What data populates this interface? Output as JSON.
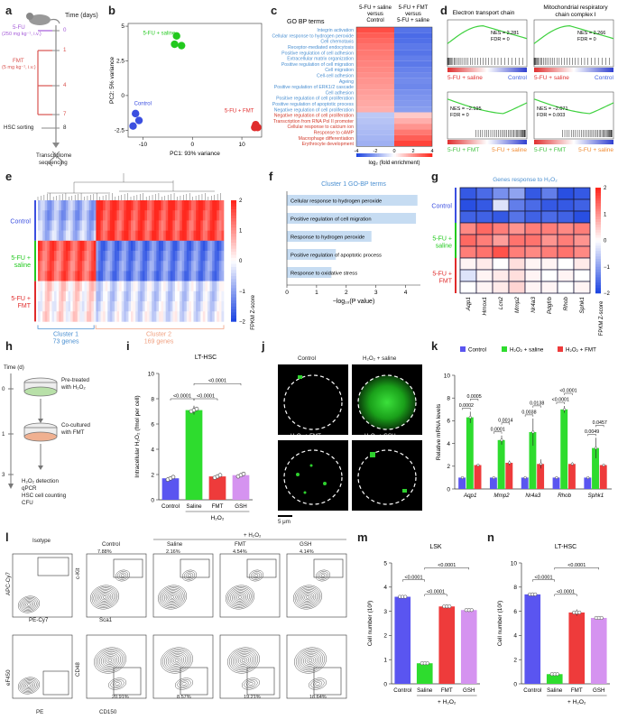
{
  "panel_labels": {
    "a": "a",
    "b": "b",
    "c": "c",
    "d": "d",
    "e": "e",
    "f": "f",
    "g": "g",
    "h": "h",
    "i": "i",
    "j": "j",
    "k": "k",
    "l": "l",
    "m": "m",
    "n": "n"
  },
  "panel_a": {
    "time_label": "Time (days)",
    "days": [
      "0",
      "1",
      "4",
      "7",
      "8"
    ],
    "fu_label": "5-FU",
    "fu_dose": "(250 mg kg⁻¹, i.v.)",
    "fmt_label": "FMT",
    "fmt_dose": "(5 mg kg⁻¹, i.v.)",
    "hsc_sorting": "HSC sorting",
    "transcriptome": "Transcriptome",
    "sequencing": "sequencing"
  },
  "chart_data": [
    {
      "id": "b",
      "type": "scatter",
      "xlabel": "PC1: 93% variance",
      "ylabel": "PC2: 5% variance",
      "xlim": [
        -13,
        14
      ],
      "ylim": [
        -3,
        5.2
      ],
      "xticks": [
        -10,
        0,
        10
      ],
      "yticks": [
        -2.5,
        0,
        2.5,
        5
      ],
      "series": [
        {
          "name": "5-FU + saline",
          "color": "#22c91e",
          "points": [
            [
              -3.2,
              4.3
            ],
            [
              -2.2,
              3.6
            ],
            [
              -3.6,
              3.7
            ]
          ]
        },
        {
          "name": "Control",
          "color": "#3b4fe0",
          "points": [
            [
              -11.5,
              -1.3
            ],
            [
              -10.8,
              -1.8
            ],
            [
              -12.0,
              -2.2
            ]
          ]
        },
        {
          "name": "5-FU + FMT",
          "color": "#e02b2b",
          "points": [
            [
              12.8,
              -2.1
            ],
            [
              13.2,
              -2.3
            ],
            [
              12.6,
              -2.3
            ]
          ]
        }
      ]
    },
    {
      "id": "c",
      "type": "heatmap",
      "title": "GO BP terms",
      "col_labels": [
        "5-FU + saline versus Control",
        "5-FU + FMT versus 5-FU + saline"
      ],
      "colorbar_label": "log₂ (fold enrichment)",
      "colorbar_ticks": [
        -4,
        -2,
        0,
        2,
        4
      ],
      "rows": [
        {
          "term": "Integrin activation",
          "color": "blue",
          "values": [
            3.3,
            -3.0
          ]
        },
        {
          "term": "Cellular response to hydrogen peroxide",
          "color": "blue",
          "values": [
            3.0,
            -3.2
          ]
        },
        {
          "term": "Cell chemotaxis",
          "color": "blue",
          "values": [
            2.8,
            -3.1
          ]
        },
        {
          "term": "Receptor-mediated endocytosis",
          "color": "blue",
          "values": [
            2.6,
            -2.9
          ]
        },
        {
          "term": "Positive regulation of cell adhesion",
          "color": "blue",
          "values": [
            2.5,
            -3.0
          ]
        },
        {
          "term": "Extracellular matrix organization",
          "color": "blue",
          "values": [
            2.4,
            -2.8
          ]
        },
        {
          "term": "Positive regulation of cell migration",
          "color": "blue",
          "values": [
            2.3,
            -2.9
          ]
        },
        {
          "term": "Cell migration",
          "color": "blue",
          "values": [
            2.2,
            -2.7
          ]
        },
        {
          "term": "Cell-cell adhesion",
          "color": "blue",
          "values": [
            2.1,
            -2.6
          ]
        },
        {
          "term": "Ageing",
          "color": "blue",
          "values": [
            2.0,
            -2.5
          ]
        },
        {
          "term": "Positive regulation of ERK1/2 cascade",
          "color": "blue",
          "values": [
            1.9,
            -2.6
          ]
        },
        {
          "term": "Cell adhesion",
          "color": "blue",
          "values": [
            1.8,
            -2.4
          ]
        },
        {
          "term": "Positive regulation of cell proliferation",
          "color": "blue",
          "values": [
            1.7,
            -2.3
          ]
        },
        {
          "term": "Positive regulation of apoptotic process",
          "color": "blue",
          "values": [
            1.6,
            -2.2
          ]
        },
        {
          "term": "Negative regulation of cell proliferation",
          "color": "blue",
          "values": [
            1.5,
            -2.1
          ]
        },
        {
          "term": "Negative regulation of cell proliferation",
          "color": "red",
          "values": [
            -1.2,
            1.0
          ]
        },
        {
          "term": "Transcription from RNA Pol II promoter",
          "color": "red",
          "values": [
            -1.3,
            1.5
          ]
        },
        {
          "term": "Cellular response to calcium ion",
          "color": "red",
          "values": [
            -1.4,
            2.0
          ]
        },
        {
          "term": "Response to cAMP",
          "color": "red",
          "values": [
            -1.5,
            2.5
          ]
        },
        {
          "term": "Macrophage differentiation",
          "color": "red",
          "values": [
            -1.6,
            3.0
          ]
        },
        {
          "term": "Erythrocyte development",
          "color": "red",
          "values": [
            -1.7,
            3.5
          ]
        }
      ]
    },
    {
      "id": "f",
      "type": "bar",
      "title": "Cluster 1 GO-BP terms",
      "xlabel": "−log₁₀(P value)",
      "xlim": [
        0,
        4.5
      ],
      "xticks": [
        0,
        1,
        2,
        3,
        4
      ],
      "categories": [
        "Cellular response to hydrogen peroxide",
        "Positive regulation of cell migration",
        "Response to hydrogen peroxide",
        "Positive regulation of apoptotic process",
        "Response to oxidative stress"
      ],
      "values": [
        4.4,
        4.35,
        2.85,
        1.65,
        1.5
      ],
      "bar_color": "#c6dcf2"
    },
    {
      "id": "i",
      "type": "bar",
      "title": "LT-HSC",
      "ylabel": "Intracellular H₂O₂ (fmol per cell)",
      "ylim": [
        0,
        10
      ],
      "yticks": [
        0,
        2,
        4,
        6,
        8,
        10
      ],
      "categories": [
        "Control",
        "Saline",
        "FMT",
        "GSH"
      ],
      "values": [
        1.7,
        7.1,
        1.85,
        1.95
      ],
      "errors": [
        0.15,
        0.35,
        0.1,
        0.12
      ],
      "colors": [
        "#5a55f0",
        "#2edc2e",
        "#ee3b3b",
        "#d593f0"
      ],
      "group_label": "H₂O₂",
      "pvalues": [
        "<0.0001",
        "<0.0001",
        "<0.0001"
      ]
    },
    {
      "id": "k",
      "type": "bar",
      "ylabel": "Relative mRNA levels",
      "ylim": [
        0,
        10
      ],
      "yticks": [
        0,
        2,
        4,
        6,
        8,
        10
      ],
      "categories": [
        "Aqp1",
        "Mmp2",
        "Nr4a3",
        "Rhob",
        "Sphk1"
      ],
      "series": [
        {
          "name": "Control",
          "color": "#5a55f0",
          "values": [
            1.0,
            1.0,
            1.0,
            1.0,
            1.0
          ],
          "errors": [
            0.05,
            0.05,
            0.05,
            0.05,
            0.05
          ]
        },
        {
          "name": "H₂O₂ + saline",
          "color": "#2edc2e",
          "values": [
            6.3,
            4.3,
            5.0,
            7.0,
            3.6
          ],
          "errors": [
            0.5,
            0.4,
            1.2,
            0.3,
            0.9
          ]
        },
        {
          "name": "H₂O₂ + FMT",
          "color": "#ee3b3b",
          "values": [
            2.1,
            2.3,
            2.2,
            2.2,
            2.1
          ],
          "errors": [
            0.1,
            0.2,
            0.4,
            0.15,
            0.1
          ]
        }
      ],
      "pvalues": [
        [
          "0.0005",
          "0.0002"
        ],
        [
          "0.0014",
          "0.0001"
        ],
        [
          "0.0138",
          "0.0038"
        ],
        [
          "<0.0001",
          "<0.0001"
        ],
        [
          "0.0457",
          "0.0049"
        ]
      ]
    },
    {
      "id": "m",
      "type": "bar",
      "title": "LSK",
      "ylabel": "Cell number (10³)",
      "ylim": [
        0,
        5
      ],
      "yticks": [
        0,
        1,
        2,
        3,
        4,
        5
      ],
      "categories": [
        "Control",
        "Saline",
        "FMT",
        "GSH"
      ],
      "values": [
        3.6,
        0.85,
        3.2,
        3.05
      ],
      "errors": [
        0.05,
        0.05,
        0.08,
        0.07
      ],
      "colors": [
        "#5a55f0",
        "#2edc2e",
        "#ee3b3b",
        "#d593f0"
      ],
      "group_label": "+ H₂O₂",
      "pvalues": [
        "<0.0001",
        "<0.0001",
        "<0.0001"
      ]
    },
    {
      "id": "n",
      "type": "bar",
      "title": "LT-HSC",
      "ylabel": "Cell number (10²)",
      "ylim": [
        0,
        10
      ],
      "yticks": [
        0,
        2,
        4,
        6,
        8,
        10
      ],
      "categories": [
        "Control",
        "Saline",
        "FMT",
        "GSH"
      ],
      "values": [
        7.4,
        0.8,
        5.9,
        5.45
      ],
      "errors": [
        0.15,
        0.08,
        0.25,
        0.15
      ],
      "colors": [
        "#5a55f0",
        "#2edc2e",
        "#ee3b3b",
        "#d593f0"
      ],
      "group_label": "+ H₂O₂",
      "pvalues": [
        "<0.0001",
        "<0.0001",
        "<0.0001"
      ]
    }
  ],
  "panel_d": {
    "titles": [
      "Electron transport chain",
      "Mitochondrial respiratory chain complex I"
    ],
    "stats": [
      [
        "NES = 2.281",
        "FDR = 0"
      ],
      [
        "NES = 2.266",
        "FDR = 0"
      ],
      [
        "NES = −2.195",
        "FDR = 0"
      ],
      [
        "NES = −2.071",
        "FDR = 0.003"
      ]
    ],
    "top_left": "5-FU + saline",
    "top_right": "Control",
    "bottom_left": "5-FU + FMT",
    "bottom_right": "5-FU + saline"
  },
  "panel_e": {
    "rows": [
      "Control",
      "5-FU + saline",
      "5-FU + FMT"
    ],
    "cluster1": "Cluster 1",
    "cluster1_n": "73 genes",
    "cluster2": "Cluster 2",
    "cluster2_n": "169 genes",
    "colorbar_label": "FPKM Z-score",
    "colorbar_ticks": [
      "2",
      "1",
      "0",
      "−1",
      "−2"
    ]
  },
  "panel_g": {
    "title": "Genes response to H₂O₂",
    "genes": [
      "Aqp1",
      "Hmox1",
      "Lcn2",
      "Mmp2",
      "Nr4a3",
      "Pdgfrb",
      "Rhob",
      "Sphk1"
    ],
    "rows": [
      "Control",
      "5-FU + saline",
      "5-FU + FMT"
    ],
    "colorbar_label": "FPKM Z-score",
    "colorbar_ticks": [
      "2",
      "1",
      "0",
      "−1",
      "−2"
    ]
  },
  "panel_h": {
    "time_label": "Time (d)",
    "day0": "0",
    "day1": "1",
    "day3": "3",
    "pretreat": "Pre-treated",
    "pretreat2": "with H₂O₂",
    "cocult": "Co-cultured",
    "cocult2": "with FMT",
    "outcomes": [
      "H₂O₂ detection",
      "qPCR",
      "HSC cell counting",
      "CFU"
    ]
  },
  "panel_j": {
    "labels": [
      "Control",
      "H₂O₂ + saline",
      "H₂O₂ + FMT",
      "H₂O₂ + GSH"
    ],
    "scalebar": "5 μm"
  },
  "panel_l": {
    "isotype": "Isotype",
    "h2o2": "+ H₂O₂",
    "cols": [
      "Control",
      "Saline",
      "FMT",
      "GSH"
    ],
    "top_pcts": [
      "7.88%",
      "2.16%",
      "4.54%",
      "4.14%"
    ],
    "bottom_pcts": [
      "20.91%",
      "8.57%",
      "19.21%",
      "18.64%"
    ],
    "top_y": "c-Kit",
    "top_x": "Sca1",
    "bottom_y": "CD48",
    "bottom_x": "CD150",
    "iso_top_y": "APC-Cy7",
    "iso_top_x": "PE-Cy7",
    "iso_bottom_y": "eF450",
    "iso_bottom_x": "PE"
  }
}
